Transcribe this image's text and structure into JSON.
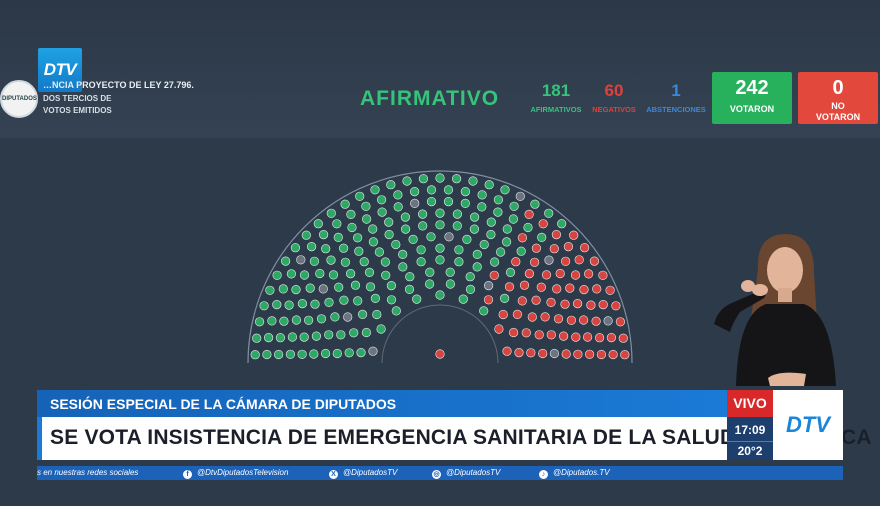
{
  "header": {
    "logo_text": "DTV",
    "seal_text": "DIPUTADOS",
    "vote_title": "…NCIA PROYECTO DE LEY 27.796.",
    "majority": "DOS TERCIOS DE",
    "majority2": "VOTOS EMITIDOS",
    "result": "AFIRMATIVO"
  },
  "stats": {
    "afirmativos": {
      "value": "181",
      "label": "AFIRMATIVOS",
      "color": "#35c47a"
    },
    "negativos": {
      "value": "60",
      "label": "NEGATIVOS",
      "color": "#e0413a"
    },
    "abstenciones": {
      "value": "1",
      "label": "ABSTENCIONES",
      "color": "#3c88d8"
    }
  },
  "boxes": {
    "votaron": {
      "value": "242",
      "label": "VOTARON",
      "color": "#27b15d"
    },
    "no_votaron": {
      "value": "0",
      "label1": "NO",
      "label2": "VOTARON",
      "color": "#e2483c"
    }
  },
  "chamber": {
    "seat_colors": {
      "afirmativo": "#2fa866",
      "negativo": "#d6453f",
      "abstencion": "#8a8f96",
      "ausente": "#6c7480"
    }
  },
  "lower_third": {
    "kicker": "SESIÓN ESPECIAL DE LA CÁMARA DE DIPUTADOS",
    "headline": "SE VOTA INSISTENCIA DE EMERGENCIA SANITARIA DE LA SALUD PEDIÁTRICA",
    "live": "VIVO",
    "time": "17:09",
    "temp": "20°2",
    "logo": "DTV"
  },
  "ticker": {
    "lead": "s en nuestras redes sociales",
    "items": [
      {
        "icon": "facebook-icon",
        "glyph": "f",
        "text": "@DtvDiputadosTelevision"
      },
      {
        "icon": "x-icon",
        "glyph": "X",
        "text": "@DiputadosTV"
      },
      {
        "icon": "instagram-icon",
        "glyph": "◎",
        "text": "@DiputadosTV"
      },
      {
        "icon": "tiktok-icon",
        "glyph": "♪",
        "text": "@Diputados.TV"
      }
    ]
  }
}
